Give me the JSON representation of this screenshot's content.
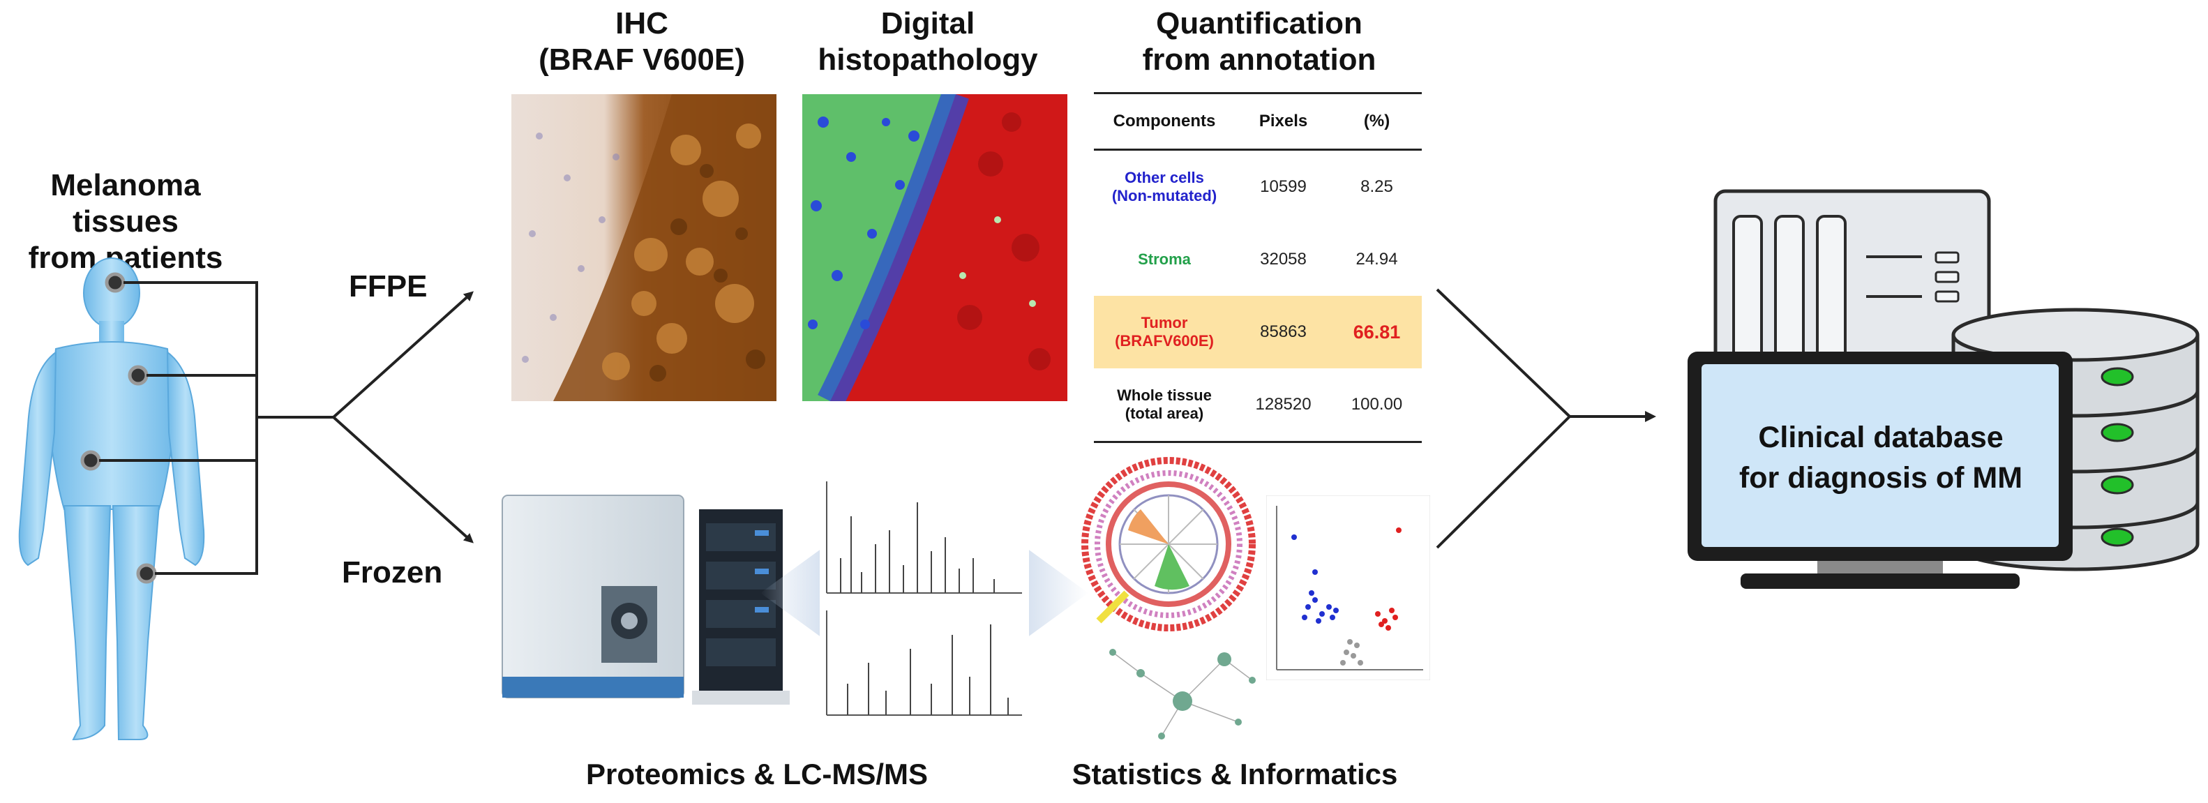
{
  "left": {
    "title_line1": "Melanoma tissues",
    "title_line2": "from patients"
  },
  "branches": {
    "ffpe": "FFPE",
    "frozen": "Frozen"
  },
  "headers": {
    "ihc_line1": "IHC",
    "ihc_line2": "(BRAF V600E)",
    "digital_line1": "Digital",
    "digital_line2": "histopathology",
    "quant_line1": "Quantification",
    "quant_line2": "from annotation"
  },
  "table": {
    "columns": [
      "Components",
      "Pixels",
      "(%)"
    ],
    "rows": [
      {
        "name_line1": "Other cells",
        "name_line2": "(Non-mutated)",
        "pixels": "10599",
        "percent": "8.25",
        "color": "#2222cc",
        "highlight": false
      },
      {
        "name_line1": "Stroma",
        "name_line2": "",
        "pixels": "32058",
        "percent": "24.94",
        "color": "#22a04a",
        "highlight": false
      },
      {
        "name_line1": "Tumor",
        "name_line2": "(BRAFV600E)",
        "pixels": "85863",
        "percent": "66.81",
        "color": "#e02020",
        "highlight": true
      },
      {
        "name_line1": "Whole tissue",
        "name_line2": "(total area)",
        "pixels": "128520",
        "percent": "100.00",
        "color": "#111111",
        "highlight": false
      }
    ],
    "highlight_color": "#fde3a4"
  },
  "bottom_labels": {
    "proteomics": "Proteomics & LC-MS/MS",
    "statistics": "Statistics & Informatics"
  },
  "database": {
    "line1": "Clinical database",
    "line2": "for diagnosis of MM"
  },
  "colors": {
    "ihc_brown": "#8a4a14",
    "tumor_red": "#d01818",
    "stroma_green": "#5fbf6a",
    "cell_blue": "#2a4bd8",
    "body_blue": "#8ecdf0",
    "monitor_screen": "#cfe6f8",
    "led_green": "#22c02a"
  }
}
